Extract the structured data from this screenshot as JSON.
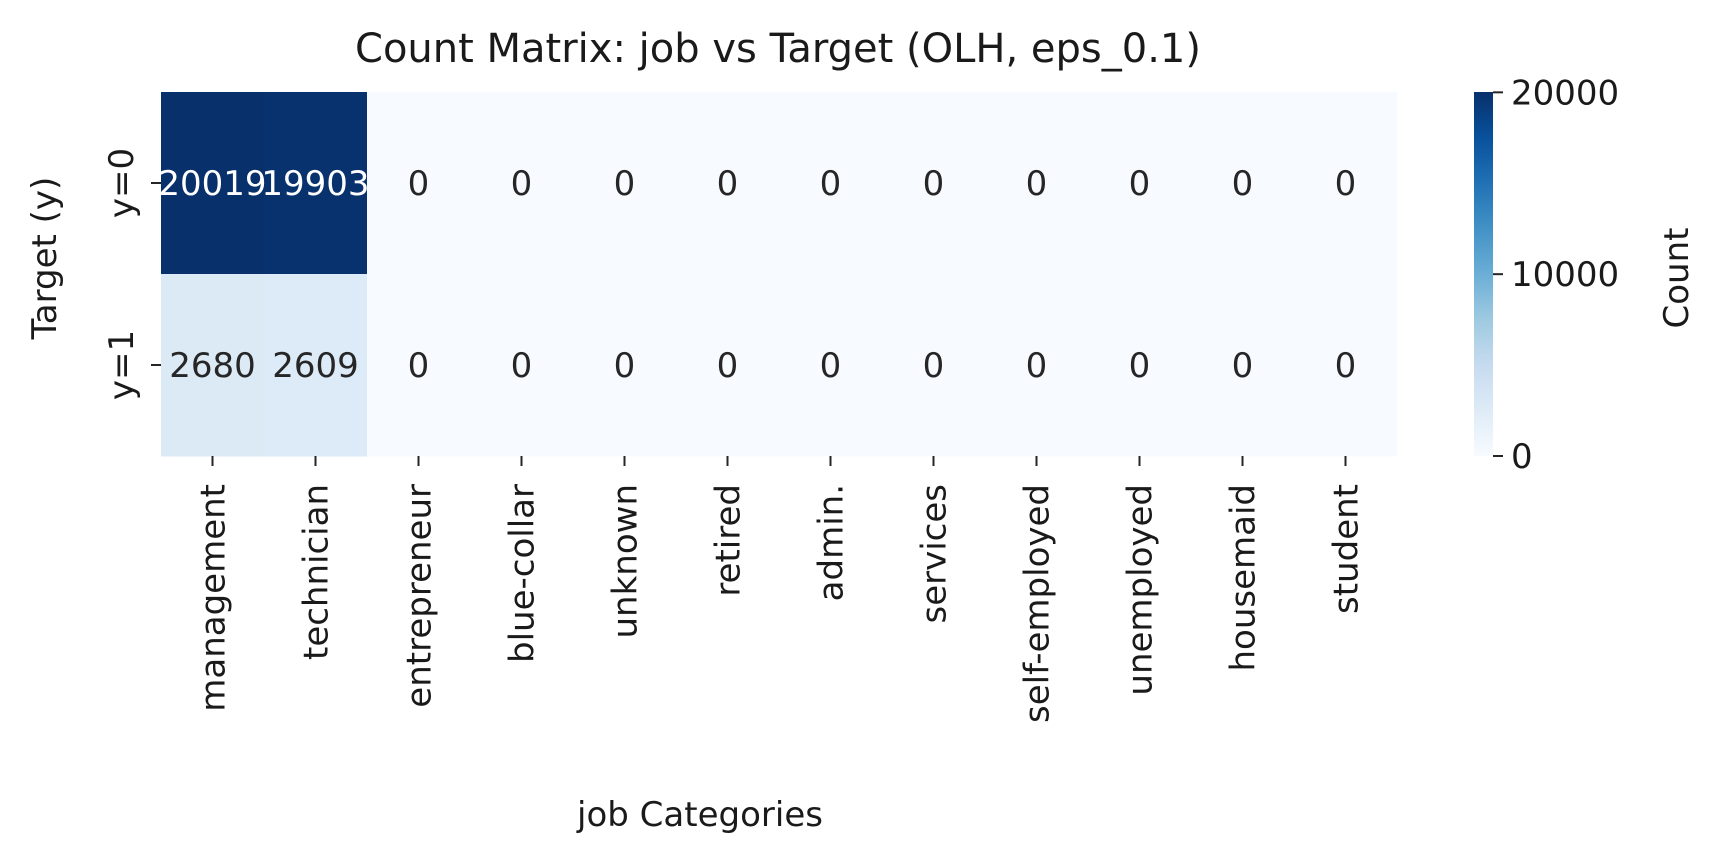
{
  "chart_data": {
    "type": "heatmap",
    "title": "Count Matrix: job vs Target (OLH, eps_0.1)",
    "xlabel": "job Categories",
    "ylabel": "Target (y)",
    "x_categories": [
      "management",
      "technician",
      "entrepreneur",
      "blue-collar",
      "unknown",
      "retired",
      "admin.",
      "services",
      "self-employed",
      "unemployed",
      "housemaid",
      "student"
    ],
    "y_categories": [
      "y=0",
      "y=1"
    ],
    "values": [
      [
        20019,
        19903,
        0,
        0,
        0,
        0,
        0,
        0,
        0,
        0,
        0,
        0
      ],
      [
        2680,
        2609,
        0,
        0,
        0,
        0,
        0,
        0,
        0,
        0,
        0,
        0
      ]
    ],
    "cell_labels": [
      [
        "20019",
        "19903",
        "0",
        "0",
        "0",
        "0",
        "0",
        "0",
        "0",
        "0",
        "0",
        "0"
      ],
      [
        "2680",
        "2609",
        "0",
        "0",
        "0",
        "0",
        "0",
        "0",
        "0",
        "0",
        "0",
        "0"
      ]
    ],
    "colorscale": "Blues",
    "colorbar": {
      "label": "Count",
      "range": [
        0,
        20019
      ],
      "ticks": [
        0,
        10000,
        20000
      ],
      "tick_labels": [
        "0",
        "10000",
        "20000"
      ]
    }
  }
}
